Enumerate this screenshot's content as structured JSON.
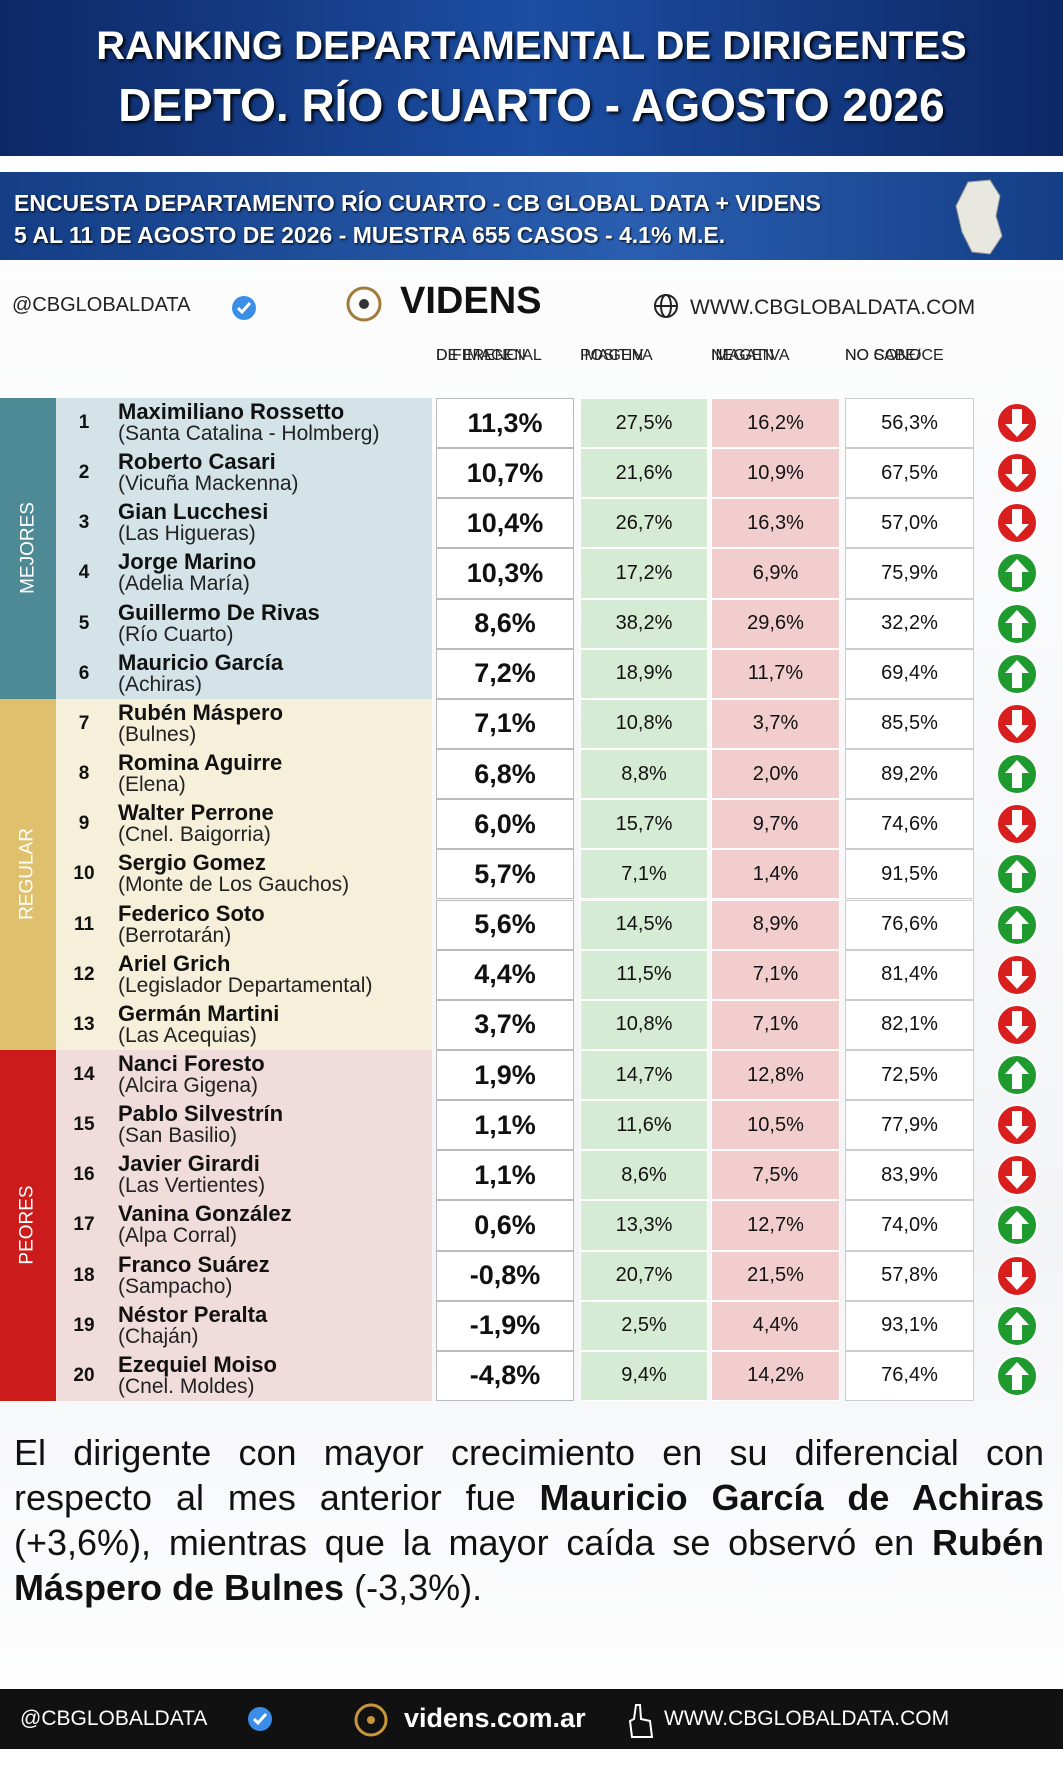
{
  "header": {
    "title_lines": [
      "RANKING DEPARTAMENTAL DE DIRIGENTES",
      "DEPTO. RÍO CUARTO - AGOSTO 2026"
    ]
  },
  "subheader": {
    "lines": [
      "ENCUESTA DEPARTAMENTO RÍO CUARTO - CB GLOBAL DATA + VIDENS",
      "5 AL 11 DE AGOSTO DE 2026 - MUESTRA 655 CASOS - 4.1% M.E."
    ]
  },
  "brand_row": {
    "handle": "@CBGLOBALDATA",
    "brand": "VIDENS",
    "website": "WWW.CBGLOBALDATA.COM"
  },
  "table": {
    "columns": [
      [
        "DIFERENCIAL",
        "DE IMAGEN"
      ],
      [
        "IMAGEN",
        "POSITIVA"
      ],
      [
        "IMAGEN",
        "NEGATIVA"
      ],
      [
        "NO SABE/",
        "NO CONOCE"
      ]
    ],
    "groups": [
      {
        "label": "MEJORES",
        "color": "#4d8a95",
        "fill": "#d3e3e7",
        "rows": [
          {
            "rank": 1,
            "name": "Maximiliano Rossetto",
            "place": "(Santa Catalina - Holmberg)",
            "diff": "11,3%",
            "pos": "27,5%",
            "neg": "16,2%",
            "ns": "56,3%",
            "trend": "down"
          },
          {
            "rank": 2,
            "name": "Roberto Casari",
            "place": "(Vicuña Mackenna)",
            "diff": "10,7%",
            "pos": "21,6%",
            "neg": "10,9%",
            "ns": "67,5%",
            "trend": "down"
          },
          {
            "rank": 3,
            "name": "Gian Lucchesi",
            "place": "(Las Higueras)",
            "diff": "10,4%",
            "pos": "26,7%",
            "neg": "16,3%",
            "ns": "57,0%",
            "trend": "down"
          },
          {
            "rank": 4,
            "name": "Jorge Marino",
            "place": "(Adelia María)",
            "diff": "10,3%",
            "pos": "17,2%",
            "neg": "6,9%",
            "ns": "75,9%",
            "trend": "up"
          },
          {
            "rank": 5,
            "name": "Guillermo De Rivas",
            "place": "(Río Cuarto)",
            "diff": "8,6%",
            "pos": "38,2%",
            "neg": "29,6%",
            "ns": "32,2%",
            "trend": "up"
          },
          {
            "rank": 6,
            "name": "Mauricio García",
            "place": "(Achiras)",
            "diff": "7,2%",
            "pos": "18,9%",
            "neg": "11,7%",
            "ns": "69,4%",
            "trend": "up"
          }
        ]
      },
      {
        "label": "REGULAR",
        "color": "#dfc06c",
        "fill": "#f6f0da",
        "rows": [
          {
            "rank": 7,
            "name": "Rubén Máspero",
            "place": "(Bulnes)",
            "diff": "7,1%",
            "pos": "10,8%",
            "neg": "3,7%",
            "ns": "85,5%",
            "trend": "down"
          },
          {
            "rank": 8,
            "name": "Romina Aguirre",
            "place": "(Elena)",
            "diff": "6,8%",
            "pos": "8,8%",
            "neg": "2,0%",
            "ns": "89,2%",
            "trend": "up"
          },
          {
            "rank": 9,
            "name": "Walter Perrone",
            "place": "(Cnel. Baigorria)",
            "diff": "6,0%",
            "pos": "15,7%",
            "neg": "9,7%",
            "ns": "74,6%",
            "trend": "down"
          },
          {
            "rank": 10,
            "name": "Sergio Gomez",
            "place": "(Monte de Los Gauchos)",
            "diff": "5,7%",
            "pos": "7,1%",
            "neg": "1,4%",
            "ns": "91,5%",
            "trend": "up"
          },
          {
            "rank": 11,
            "name": "Federico Soto",
            "place": "(Berrotarán)",
            "diff": "5,6%",
            "pos": "14,5%",
            "neg": "8,9%",
            "ns": "76,6%",
            "trend": "up"
          },
          {
            "rank": 12,
            "name": "Ariel Grich",
            "place": "(Legislador Departamental)",
            "diff": "4,4%",
            "pos": "11,5%",
            "neg": "7,1%",
            "ns": "81,4%",
            "trend": "down"
          },
          {
            "rank": 13,
            "name": "Germán Martini",
            "place": "(Las Acequias)",
            "diff": "3,7%",
            "pos": "10,8%",
            "neg": "7,1%",
            "ns": "82,1%",
            "trend": "down"
          }
        ]
      },
      {
        "label": "PEORES",
        "color": "#cc1b1b",
        "fill": "#f1dcdc",
        "rows": [
          {
            "rank": 14,
            "name": "Nanci Foresto",
            "place": "(Alcira Gigena)",
            "diff": "1,9%",
            "pos": "14,7%",
            "neg": "12,8%",
            "ns": "72,5%",
            "trend": "up"
          },
          {
            "rank": 15,
            "name": "Pablo Silvestrín",
            "place": "(San Basilio)",
            "diff": "1,1%",
            "pos": "11,6%",
            "neg": "10,5%",
            "ns": "77,9%",
            "trend": "down"
          },
          {
            "rank": 16,
            "name": "Javier Girardi",
            "place": "(Las Vertientes)",
            "diff": "1,1%",
            "pos": "8,6%",
            "neg": "7,5%",
            "ns": "83,9%",
            "trend": "down"
          },
          {
            "rank": 17,
            "name": "Vanina González",
            "place": "(Alpa Corral)",
            "diff": "0,6%",
            "pos": "13,3%",
            "neg": "12,7%",
            "ns": "74,0%",
            "trend": "up"
          },
          {
            "rank": 18,
            "name": "Franco Suárez",
            "place": "(Sampacho)",
            "diff": "-0,8%",
            "pos": "20,7%",
            "neg": "21,5%",
            "ns": "57,8%",
            "trend": "down"
          },
          {
            "rank": 19,
            "name": "Néstor Peralta",
            "place": "(Chaján)",
            "diff": "-1,9%",
            "pos": "2,5%",
            "neg": "4,4%",
            "ns": "93,1%",
            "trend": "up"
          },
          {
            "rank": 20,
            "name": "Ezequiel Moiso",
            "place": "(Cnel. Moldes)",
            "diff": "-4,8%",
            "pos": "9,4%",
            "neg": "14,2%",
            "ns": "76,4%",
            "trend": "up"
          }
        ]
      }
    ]
  },
  "footnote": [
    "El dirigente con mayor crecimiento en su diferencial con respecto al mes anterior fue ",
    "Mauricio García de Achiras",
    " (+3,6%), mientras que la mayor caída se observó en ",
    "Rubén Máspero de Bulnes",
    " (-3,3%)."
  ],
  "footer": {
    "handle": "@CBGLOBALDATA",
    "site": "videns.com.ar",
    "website": "WWW.CBGLOBALDATA.COM"
  }
}
